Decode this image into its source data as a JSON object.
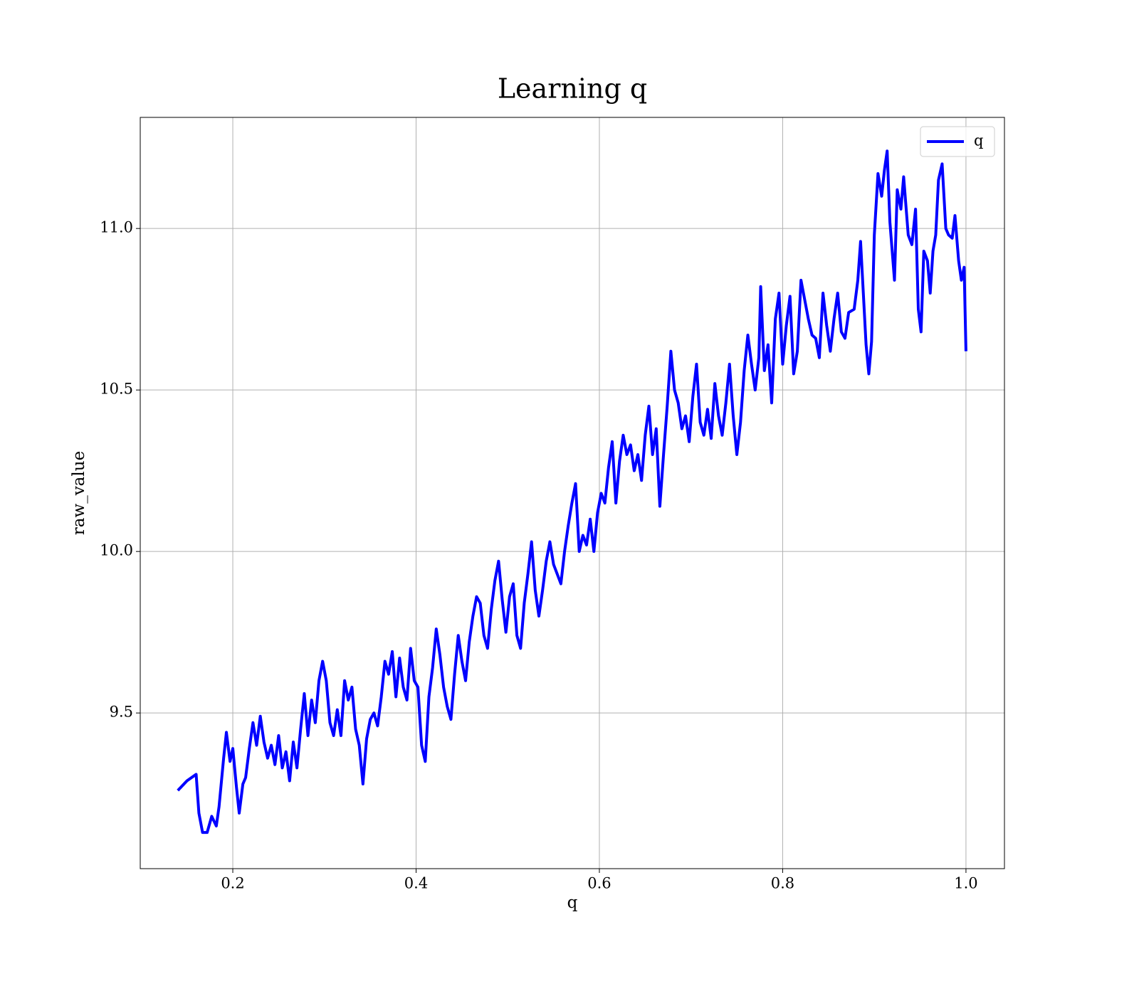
{
  "chart_data": {
    "type": "line",
    "title": "Learning q",
    "xlabel": "q",
    "ylabel": "raw_value",
    "x": [
      0.14,
      0.15,
      0.16,
      0.163,
      0.167,
      0.172,
      0.177,
      0.182,
      0.185,
      0.19,
      0.193,
      0.197,
      0.2,
      0.204,
      0.207,
      0.211,
      0.214,
      0.218,
      0.222,
      0.226,
      0.23,
      0.234,
      0.238,
      0.242,
      0.246,
      0.25,
      0.254,
      0.258,
      0.262,
      0.266,
      0.27,
      0.274,
      0.278,
      0.282,
      0.286,
      0.29,
      0.294,
      0.298,
      0.302,
      0.306,
      0.31,
      0.314,
      0.318,
      0.322,
      0.326,
      0.33,
      0.334,
      0.338,
      0.342,
      0.346,
      0.35,
      0.354,
      0.358,
      0.362,
      0.366,
      0.37,
      0.374,
      0.378,
      0.382,
      0.386,
      0.39,
      0.394,
      0.398,
      0.402,
      0.406,
      0.41,
      0.414,
      0.418,
      0.422,
      0.426,
      0.43,
      0.434,
      0.438,
      0.442,
      0.446,
      0.45,
      0.454,
      0.458,
      0.462,
      0.466,
      0.47,
      0.474,
      0.478,
      0.482,
      0.486,
      0.49,
      0.494,
      0.498,
      0.502,
      0.506,
      0.51,
      0.514,
      0.518,
      0.522,
      0.526,
      0.53,
      0.534,
      0.538,
      0.542,
      0.546,
      0.55,
      0.554,
      0.558,
      0.562,
      0.566,
      0.57,
      0.574,
      0.578,
      0.582,
      0.586,
      0.59,
      0.594,
      0.598,
      0.602,
      0.606,
      0.61,
      0.614,
      0.618,
      0.622,
      0.626,
      0.63,
      0.634,
      0.638,
      0.642,
      0.646,
      0.65,
      0.654,
      0.658,
      0.662,
      0.666,
      0.67,
      0.674,
      0.678,
      0.682,
      0.686,
      0.69,
      0.694,
      0.698,
      0.702,
      0.706,
      0.71,
      0.714,
      0.718,
      0.722,
      0.726,
      0.73,
      0.734,
      0.738,
      0.742,
      0.746,
      0.75,
      0.754,
      0.758,
      0.762,
      0.766,
      0.77,
      0.774,
      0.776,
      0.78,
      0.784,
      0.788,
      0.792,
      0.796,
      0.8,
      0.804,
      0.808,
      0.812,
      0.816,
      0.82,
      0.824,
      0.828,
      0.832,
      0.836,
      0.84,
      0.844,
      0.848,
      0.852,
      0.856,
      0.86,
      0.864,
      0.868,
      0.872,
      0.878,
      0.882,
      0.885,
      0.888,
      0.891,
      0.894,
      0.897,
      0.9,
      0.904,
      0.908,
      0.911,
      0.914,
      0.917,
      0.922,
      0.925,
      0.929,
      0.932,
      0.937,
      0.941,
      0.945,
      0.948,
      0.951,
      0.954,
      0.958,
      0.961,
      0.964,
      0.967,
      0.97,
      0.974,
      0.978,
      0.981,
      0.985,
      0.988,
      0.992,
      0.995,
      0.998,
      1.0
    ],
    "series": [
      {
        "name": "q",
        "color": "#0000ff",
        "values": [
          9.26,
          9.29,
          9.31,
          9.19,
          9.13,
          9.13,
          9.18,
          9.15,
          9.21,
          9.36,
          9.44,
          9.35,
          9.39,
          9.27,
          9.19,
          9.28,
          9.3,
          9.39,
          9.47,
          9.4,
          9.49,
          9.41,
          9.36,
          9.4,
          9.34,
          9.43,
          9.33,
          9.38,
          9.29,
          9.41,
          9.33,
          9.45,
          9.56,
          9.43,
          9.54,
          9.47,
          9.6,
          9.66,
          9.6,
          9.47,
          9.43,
          9.51,
          9.43,
          9.6,
          9.54,
          9.58,
          9.45,
          9.4,
          9.28,
          9.42,
          9.48,
          9.5,
          9.46,
          9.55,
          9.66,
          9.62,
          9.69,
          9.55,
          9.67,
          9.58,
          9.54,
          9.7,
          9.6,
          9.58,
          9.4,
          9.35,
          9.55,
          9.64,
          9.76,
          9.68,
          9.58,
          9.52,
          9.48,
          9.62,
          9.74,
          9.66,
          9.6,
          9.72,
          9.8,
          9.86,
          9.84,
          9.74,
          9.7,
          9.82,
          9.91,
          9.97,
          9.85,
          9.75,
          9.86,
          9.9,
          9.74,
          9.7,
          9.84,
          9.93,
          10.03,
          9.88,
          9.8,
          9.88,
          9.97,
          10.03,
          9.96,
          9.93,
          9.9,
          10.0,
          10.08,
          10.15,
          10.21,
          10.0,
          10.05,
          10.02,
          10.1,
          10.0,
          10.12,
          10.18,
          10.15,
          10.26,
          10.34,
          10.15,
          10.28,
          10.36,
          10.3,
          10.33,
          10.25,
          10.3,
          10.22,
          10.36,
          10.45,
          10.3,
          10.38,
          10.14,
          10.3,
          10.45,
          10.62,
          10.5,
          10.46,
          10.38,
          10.42,
          10.34,
          10.48,
          10.58,
          10.4,
          10.36,
          10.44,
          10.35,
          10.52,
          10.42,
          10.36,
          10.46,
          10.58,
          10.42,
          10.3,
          10.4,
          10.56,
          10.67,
          10.58,
          10.5,
          10.6,
          10.82,
          10.56,
          10.64,
          10.46,
          10.72,
          10.8,
          10.58,
          10.7,
          10.79,
          10.55,
          10.62,
          10.84,
          10.78,
          10.72,
          10.67,
          10.66,
          10.6,
          10.8,
          10.7,
          10.62,
          10.72,
          10.8,
          10.68,
          10.66,
          10.74,
          10.75,
          10.84,
          10.96,
          10.8,
          10.64,
          10.55,
          10.65,
          10.98,
          11.17,
          11.1,
          11.18,
          11.24,
          11.02,
          10.84,
          11.12,
          11.06,
          11.16,
          10.98,
          10.95,
          11.06,
          10.75,
          10.68,
          10.93,
          10.9,
          10.8,
          10.93,
          10.98,
          11.15,
          11.2,
          11.0,
          10.98,
          10.97,
          11.04,
          10.9,
          10.84,
          10.88,
          10.62
        ]
      }
    ],
    "xlim": [
      0.099,
      1.042
    ],
    "ylim": [
      9.018,
      11.344
    ],
    "xticks": [
      0.2,
      0.4,
      0.6,
      0.8,
      {
        "value": 1,
        "label": "1.0"
      }
    ],
    "yticks": [
      9.5,
      {
        "value": 10,
        "label": "10.0"
      },
      10.5,
      {
        "value": 11,
        "label": "11.0"
      }
    ],
    "grid": true,
    "legend": "upper right"
  }
}
